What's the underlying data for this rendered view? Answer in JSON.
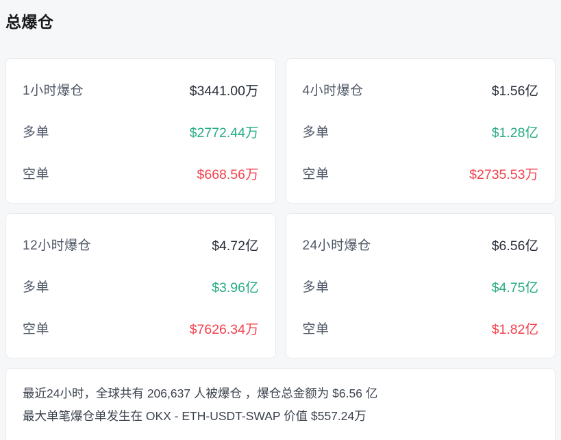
{
  "title": "总爆仓",
  "row_labels": {
    "long": "多单",
    "short": "空单"
  },
  "cards": [
    {
      "period_label": "1小时爆仓",
      "total": "$3441.00万",
      "long": "$2772.44万",
      "short": "$668.56万"
    },
    {
      "period_label": "4小时爆仓",
      "total": "$1.56亿",
      "long": "$1.28亿",
      "short": "$2735.53万"
    },
    {
      "period_label": "12小时爆仓",
      "total": "$4.72亿",
      "long": "$3.96亿",
      "short": "$7626.34万"
    },
    {
      "period_label": "24小时爆仓",
      "total": "$6.56亿",
      "long": "$4.75亿",
      "short": "$1.82亿"
    }
  ],
  "summary": {
    "line1": "最近24小时，全球共有 206,637 人被爆仓 ，爆仓总金额为 $6.56 亿",
    "line2": "最大单笔爆仓单发生在 OKX - ETH-USDT-SWAP 价值 $557.24万"
  },
  "colors": {
    "page_bg": "#f6f7f8",
    "card_bg": "#ffffff",
    "card_border": "#e9eaec",
    "title_color": "#16181b",
    "label_color": "#4e5766",
    "total_value_color": "#272d37",
    "long_color": "#27ab85",
    "short_color": "#f4414d",
    "summary_color": "#3b424d"
  }
}
